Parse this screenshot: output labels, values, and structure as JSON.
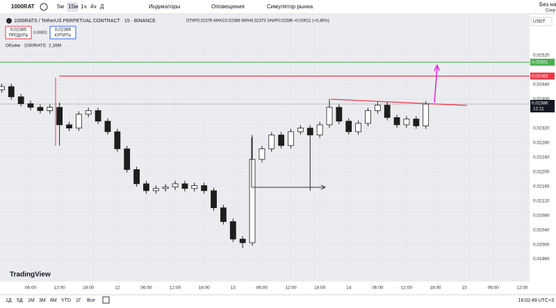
{
  "toolbar": {
    "symbol": "1000RAT",
    "intervals": [
      "5м",
      "15м",
      "1ч",
      "4ч",
      "Д"
    ],
    "indicators": "Индикаторы",
    "alerts": "Оповещения",
    "simulator": "Симулятор рынка",
    "right_top": "Без наз",
    "right_bottom": "Сохр"
  },
  "info": {
    "title": "1000RATS / TetherUS PERPETUAL CONTRACT · 15 · BINANCE",
    "ohlc": "ОТКР0,02376 МАКС0,02386 МИН0,02373 ЗАКР0,02386 +0,00011 (+0,46%)",
    "sell_price": "0,02385",
    "sell": "ПРОДАТЬ",
    "spread": "0,00001",
    "buy_price": "0,02386",
    "buy": "КУПИТЬ",
    "volume_label": "Объём · 1000RATS",
    "volume_value": "2,16M",
    "currency": "USDT"
  },
  "logo": "TradingView",
  "bottom": {
    "ranges": [
      "1Д",
      "5Д",
      "1М",
      "3М",
      "6М",
      "YTD",
      "1Г",
      "Все"
    ],
    "clock": "16:02:49 UTC+3"
  },
  "chart_data": {
    "type": "candlestick",
    "color": "#1e1e1e",
    "categories": [
      null,
      null,
      null,
      "06:00",
      null,
      null,
      "12:00",
      null,
      null,
      "18:00",
      null,
      null,
      "12",
      null,
      null,
      "06:00",
      null,
      null,
      "12:00",
      null,
      null,
      "18:00",
      null,
      null,
      "13",
      null,
      null,
      "06:00",
      null,
      null,
      "12:00",
      null,
      null,
      "18:00",
      null,
      null,
      "14",
      null,
      null,
      "06:00",
      null,
      null,
      "12:00",
      null,
      null,
      "18:00",
      null,
      null,
      "15",
      null,
      null,
      "06:00",
      null,
      null,
      "12:00"
    ],
    "open": [
      0.02425,
      0.02434,
      0.02406,
      0.02387,
      0.02377,
      0.02368,
      0.02377,
      0.02329,
      0.0232,
      0.02358,
      0.02368,
      0.02339,
      0.0231,
      0.02263,
      0.02206,
      0.02167,
      0.02148,
      0.02154,
      0.02158,
      0.02167,
      0.02154,
      0.02162,
      0.02148,
      0.02101,
      0.02063,
      0.02015,
      0.02005,
      0.02234,
      0.02263,
      0.02301,
      0.02272,
      0.0231,
      0.0232,
      0.02301,
      0.02329,
      0.02377,
      0.02339,
      0.0231,
      0.02333,
      0.02368,
      0.02383,
      0.02349,
      0.02329,
      0.02345,
      0.02326,
      null,
      null,
      null,
      null,
      null,
      null,
      null,
      null,
      null,
      null
    ],
    "high": [
      0.02442,
      0.02442,
      0.02414,
      0.02395,
      0.02385,
      0.02385,
      0.0239,
      0.02337,
      0.02366,
      0.02376,
      0.02376,
      0.02347,
      0.02318,
      0.02271,
      0.02214,
      0.02175,
      0.02162,
      0.02166,
      0.02175,
      0.02175,
      0.0217,
      0.0217,
      0.02156,
      0.02109,
      0.02071,
      0.02023,
      0.02301,
      0.02271,
      0.02309,
      0.02309,
      0.02318,
      0.02328,
      0.02328,
      0.02337,
      0.024,
      0.02385,
      0.02347,
      0.02341,
      0.02376,
      0.02392,
      0.02391,
      0.02357,
      0.02353,
      0.02353,
      0.02394,
      null,
      null,
      null,
      null,
      null,
      null,
      null,
      null,
      null,
      null
    ],
    "low": [
      0.02417,
      0.02398,
      0.02379,
      0.02369,
      0.0236,
      0.0236,
      0.02272,
      0.02312,
      0.02312,
      0.0235,
      0.02331,
      0.02302,
      0.02255,
      0.02198,
      0.02159,
      0.0214,
      0.0214,
      0.02146,
      0.0215,
      0.02146,
      0.02146,
      0.0214,
      0.02093,
      0.02055,
      0.02007,
      0.0199,
      0.01997,
      0.02226,
      0.02255,
      0.02264,
      0.02264,
      0.02302,
      0.02148,
      0.02293,
      0.02321,
      0.02331,
      0.02302,
      0.02302,
      0.02325,
      0.0236,
      0.02341,
      0.02321,
      0.02321,
      0.02318,
      0.02318,
      null,
      null,
      null,
      null,
      null,
      null,
      null,
      null,
      null,
      null
    ],
    "close": [
      0.02434,
      0.02406,
      0.02387,
      0.02377,
      0.02368,
      0.02377,
      0.02329,
      0.0232,
      0.02358,
      0.02368,
      0.02339,
      0.0231,
      0.02263,
      0.02206,
      0.02167,
      0.02148,
      0.02154,
      0.02158,
      0.02167,
      0.02154,
      0.02162,
      0.02148,
      0.02101,
      0.02063,
      0.02015,
      0.02005,
      0.02234,
      0.02263,
      0.02301,
      0.02272,
      0.0231,
      0.0232,
      0.02301,
      0.02329,
      0.02377,
      0.02339,
      0.0231,
      0.02333,
      0.02368,
      0.02383,
      0.02349,
      0.02329,
      0.02345,
      0.02326,
      0.02386,
      null,
      null,
      null,
      null,
      null,
      null,
      null,
      null,
      null,
      null
    ],
    "ylim": [
      0.019,
      0.0263
    ],
    "yticks": [
      {
        "value": 0.0252,
        "label": "0,02520"
      },
      {
        "value": 0.0244,
        "label": "0,02440"
      },
      {
        "value": 0.024,
        "label": "0,02400"
      },
      {
        "value": 0.0232,
        "label": "0,02320"
      },
      {
        "value": 0.0228,
        "label": "0,02280"
      },
      {
        "value": 0.0224,
        "label": "0,02240"
      },
      {
        "value": 0.022,
        "label": "0,02200"
      },
      {
        "value": 0.0216,
        "label": "0,02160"
      },
      {
        "value": 0.0212,
        "label": "0,02120"
      },
      {
        "value": 0.0208,
        "label": "0,02080"
      },
      {
        "value": 0.0204,
        "label": "0,02040"
      },
      {
        "value": 0.02,
        "label": "0,02000"
      },
      {
        "value": 0.0196,
        "label": "0,01960"
      }
    ],
    "hlines": [
      {
        "value": 0.02501,
        "label": "0,02501",
        "color": "#4caf50"
      },
      {
        "value": 0.02463,
        "label": "0,02463",
        "color": "#f23645"
      }
    ],
    "last_price": {
      "value": 0.02386,
      "label": "0,02386"
    },
    "countdown": "12:11"
  }
}
